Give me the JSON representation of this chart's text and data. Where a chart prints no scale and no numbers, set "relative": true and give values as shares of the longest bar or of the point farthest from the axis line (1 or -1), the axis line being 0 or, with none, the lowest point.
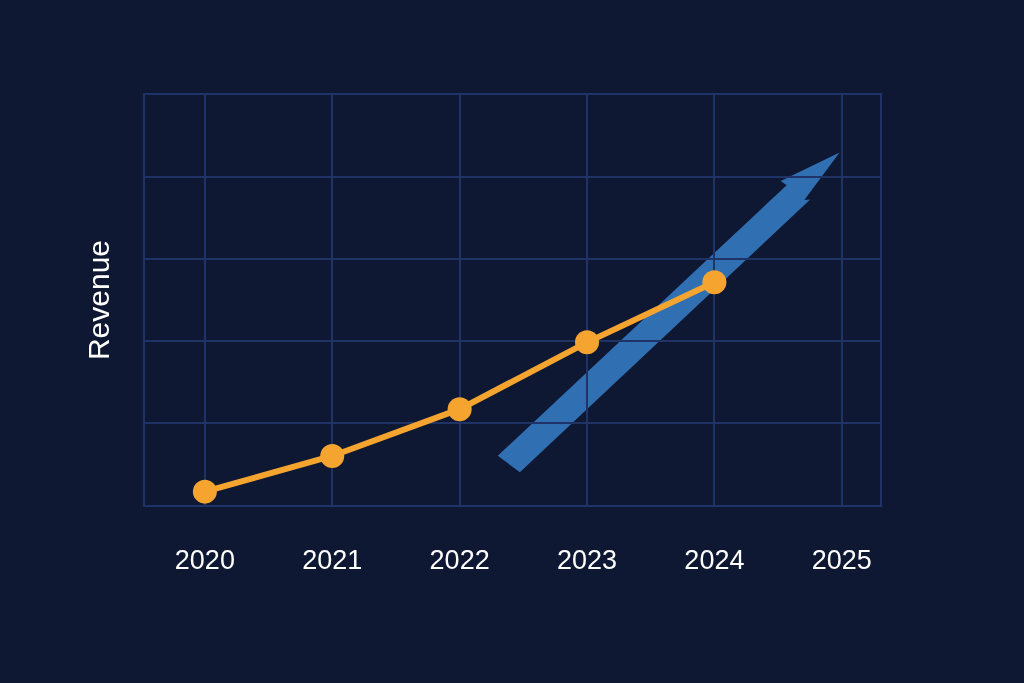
{
  "chart_data": {
    "type": "line",
    "ylabel": "Revenue",
    "relative": true,
    "categories": [
      "2020",
      "2021",
      "2022",
      "2023",
      "2024",
      "2025"
    ],
    "series": [
      {
        "color": "#f5a52f",
        "values": [
          0.06,
          0.22,
          0.43,
          0.73,
          1,
          null
        ]
      }
    ],
    "marker": "circle",
    "line_style": "solid",
    "grid": true,
    "tick_labels": "x"
  }
}
